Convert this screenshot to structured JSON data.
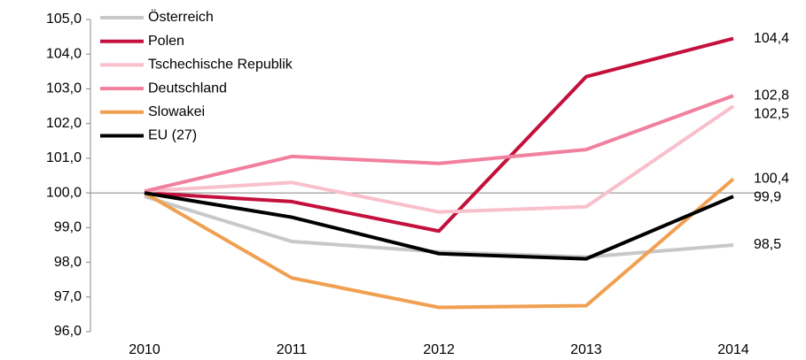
{
  "chart_data": {
    "type": "line",
    "categories": [
      "2010",
      "2011",
      "2012",
      "2013",
      "2014"
    ],
    "ylim": [
      96,
      105
    ],
    "yticks": [
      {
        "value": 96,
        "label": "96,0"
      },
      {
        "value": 97,
        "label": "97,0"
      },
      {
        "value": 98,
        "label": "98,0"
      },
      {
        "value": 99,
        "label": "99,0"
      },
      {
        "value": 100,
        "label": "100,0"
      },
      {
        "value": 101,
        "label": "101,0"
      },
      {
        "value": 102,
        "label": "102,0"
      },
      {
        "value": 103,
        "label": "103,0"
      },
      {
        "value": 104,
        "label": "104,0"
      },
      {
        "value": 105,
        "label": "105,0"
      }
    ],
    "legend": "top-left",
    "series": [
      {
        "name": "Österreich",
        "color": "#c8c8c8",
        "values": [
          99.9,
          98.6,
          98.3,
          98.15,
          98.5
        ],
        "value_labels": [
          null,
          null,
          null,
          null,
          "98,5"
        ]
      },
      {
        "name": "Polen",
        "color": "#c4103c",
        "values": [
          100.0,
          99.75,
          98.9,
          103.35,
          104.45
        ],
        "value_labels": [
          null,
          null,
          null,
          null,
          "104,4"
        ]
      },
      {
        "name": "Tschechische Republik",
        "color": "#f8c0cc",
        "values": [
          100.05,
          100.3,
          99.45,
          99.6,
          102.5
        ],
        "value_labels": [
          null,
          null,
          null,
          null,
          "102,5"
        ]
      },
      {
        "name": "Deutschland",
        "color": "#f0809e",
        "values": [
          100.05,
          101.05,
          100.85,
          101.25,
          102.8
        ],
        "value_labels": [
          null,
          null,
          null,
          null,
          "102,8"
        ]
      },
      {
        "name": "Slowakei",
        "color": "#f0a050",
        "values": [
          100.0,
          97.55,
          96.7,
          96.75,
          100.4
        ],
        "value_labels": [
          null,
          null,
          null,
          null,
          "100,4"
        ]
      },
      {
        "name": "EU (27)",
        "color": "#000000",
        "values": [
          100.0,
          99.3,
          98.25,
          98.1,
          99.9
        ],
        "value_labels": [
          null,
          null,
          null,
          null,
          "99,9"
        ]
      }
    ]
  }
}
